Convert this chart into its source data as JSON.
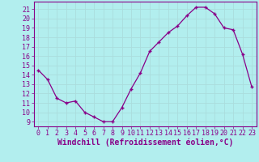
{
  "hours": [
    0,
    1,
    2,
    3,
    4,
    5,
    6,
    7,
    8,
    9,
    10,
    11,
    12,
    13,
    14,
    15,
    16,
    17,
    18,
    19,
    20,
    21,
    22,
    23
  ],
  "temps": [
    14.5,
    13.5,
    11.5,
    11.0,
    11.2,
    10.0,
    9.5,
    9.0,
    9.0,
    10.5,
    12.5,
    14.2,
    16.5,
    17.5,
    18.5,
    19.2,
    20.3,
    21.2,
    21.2,
    20.5,
    19.0,
    18.8,
    16.2,
    12.7
  ],
  "line_color": "#880088",
  "marker": "+",
  "bg_color": "#b2eeee",
  "grid_color": "#aadddd",
  "xlabel": "Windchill (Refroidissement éolien,°C)",
  "ylabel_ticks": [
    9,
    10,
    11,
    12,
    13,
    14,
    15,
    16,
    17,
    18,
    19,
    20,
    21
  ],
  "ylim": [
    8.5,
    21.8
  ],
  "xlim": [
    -0.5,
    23.5
  ],
  "xlabel_fontsize": 7,
  "tick_fontsize": 6,
  "spine_color": "#880088"
}
